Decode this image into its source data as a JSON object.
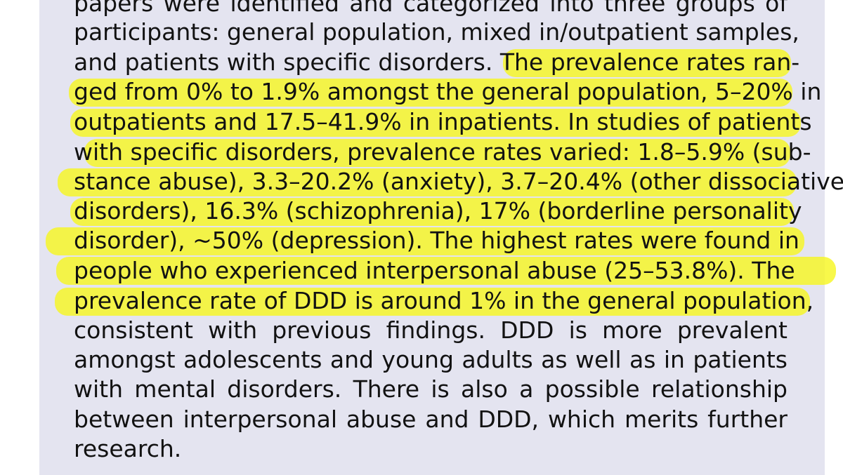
{
  "excerpt": {
    "lines": [
      "papers were identified and categorized into three groups of",
      "participants: general population, mixed in/outpatient samples,",
      "and patients with specific disorders. The prevalence rates ran-",
      "ged from 0% to 1.9% amongst the general population, 5–20% in",
      "outpatients and 17.5–41.9% in inpatients. In studies of patients",
      "with specific disorders, prevalence rates varied: 1.8–5.9% (sub-",
      "stance abuse), 3.3–20.2% (anxiety), 3.7–20.4% (other dissociative",
      "disorders), 16.3% (schizophrenia), 17% (borderline personality",
      "disorder), ~50% (depression). The highest rates were found in",
      "people who experienced interpersonal abuse (25–53.8%). The",
      "prevalence rate of DDD is around 1% in the general population,",
      "consistent with previous findings. DDD is more prevalent",
      "amongst adolescents and young adults as well as in patients",
      "with mental disorders. There is also a possible relationship",
      "between interpersonal abuse and DDD, which merits further",
      "research."
    ]
  },
  "colors": {
    "panel_background": "#e4e4f0",
    "highlighter": "#f7f722",
    "text": "#121212"
  }
}
